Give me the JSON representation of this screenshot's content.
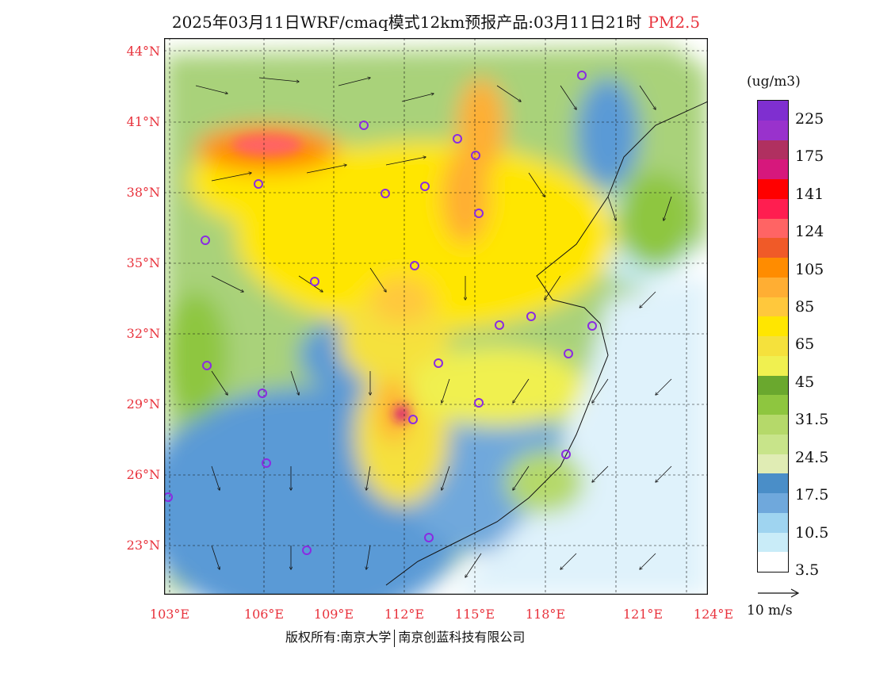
{
  "title": {
    "main": "2025年03月11日WRF/cmaq模式12km预报产品:03月11日21时",
    "species": "PM2.5"
  },
  "lat_labels": [
    "44°N",
    "41°N",
    "38°N",
    "35°N",
    "32°N",
    "29°N",
    "26°N",
    "23°N"
  ],
  "lon_labels": [
    "103°E",
    "106°E",
    "109°E",
    "112°E",
    "115°E",
    "118°E",
    "121°E",
    "124°E"
  ],
  "colorbar": {
    "unit": "(ug/m3)",
    "labels": [
      "225",
      "175",
      "141",
      "124",
      "105",
      "85",
      "65",
      "45",
      "31.5",
      "24.5",
      "17.5",
      "10.5",
      "3.5"
    ],
    "colors": [
      "#7f2fd0",
      "#9932cc",
      "#b03060",
      "#d6187c",
      "#ff0000",
      "#ff1e50",
      "#ff6464",
      "#f05a28",
      "#ff8c00",
      "#ffae33",
      "#ffc83c",
      "#ffe600",
      "#f5e13c",
      "#f0f050",
      "#6aa82e",
      "#8ec63f",
      "#b5d96a",
      "#c8e48a",
      "#e0ecb4",
      "#4a8ec8",
      "#6fa8dc",
      "#9fd4f0",
      "#c9ecf8",
      "#ffffff"
    ],
    "accent": "#e8323c"
  },
  "wind": {
    "reference_label": "10 m/s"
  },
  "footer": {
    "left": "版权所有:南京大学",
    "right": "南京创蓝科技有限公司"
  }
}
